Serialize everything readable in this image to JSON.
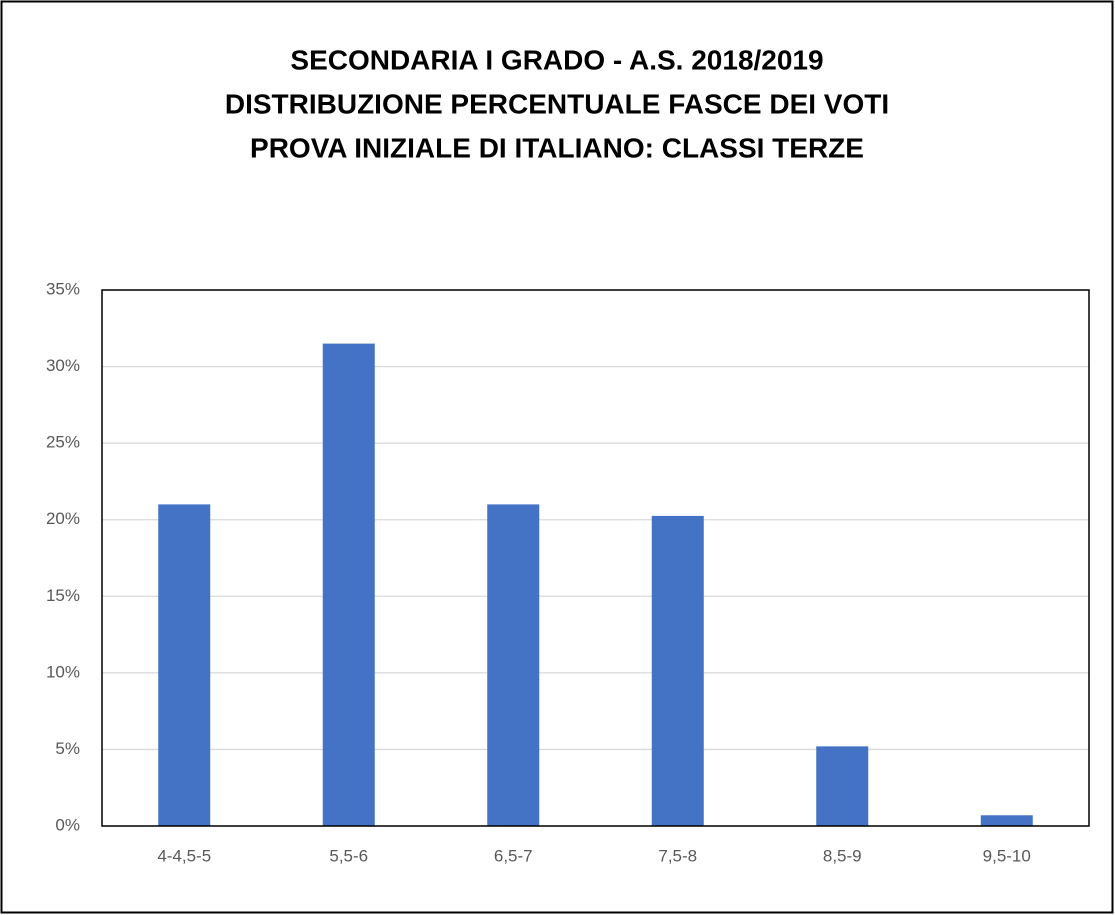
{
  "chart_data": {
    "type": "bar",
    "title": [
      "SECONDARIA I GRADO - A.S. 2018/2019",
      "DISTRIBUZIONE PERCENTUALE FASCE DEI VOTI",
      "PROVA INIZIALE DI ITALIANO: CLASSI TERZE"
    ],
    "categories": [
      "4-4,5-5",
      "5,5-6",
      "6,5-7",
      "7,5-8",
      "8,5-9",
      "9,5-10"
    ],
    "values": [
      21,
      31.5,
      21,
      20.25,
      5.2,
      0.7
    ],
    "color": "#4472c4",
    "ylim": [
      0,
      35
    ],
    "yticks": [
      {
        "value": 0,
        "label": "0%"
      },
      {
        "value": 5,
        "label": "5%"
      },
      {
        "value": 10,
        "label": "10%"
      },
      {
        "value": 15,
        "label": "15%"
      },
      {
        "value": 20,
        "label": "20%"
      },
      {
        "value": 25,
        "label": "25%"
      },
      {
        "value": 30,
        "label": "30%"
      },
      {
        "value": 35,
        "label": "35%"
      }
    ],
    "grid": true
  }
}
